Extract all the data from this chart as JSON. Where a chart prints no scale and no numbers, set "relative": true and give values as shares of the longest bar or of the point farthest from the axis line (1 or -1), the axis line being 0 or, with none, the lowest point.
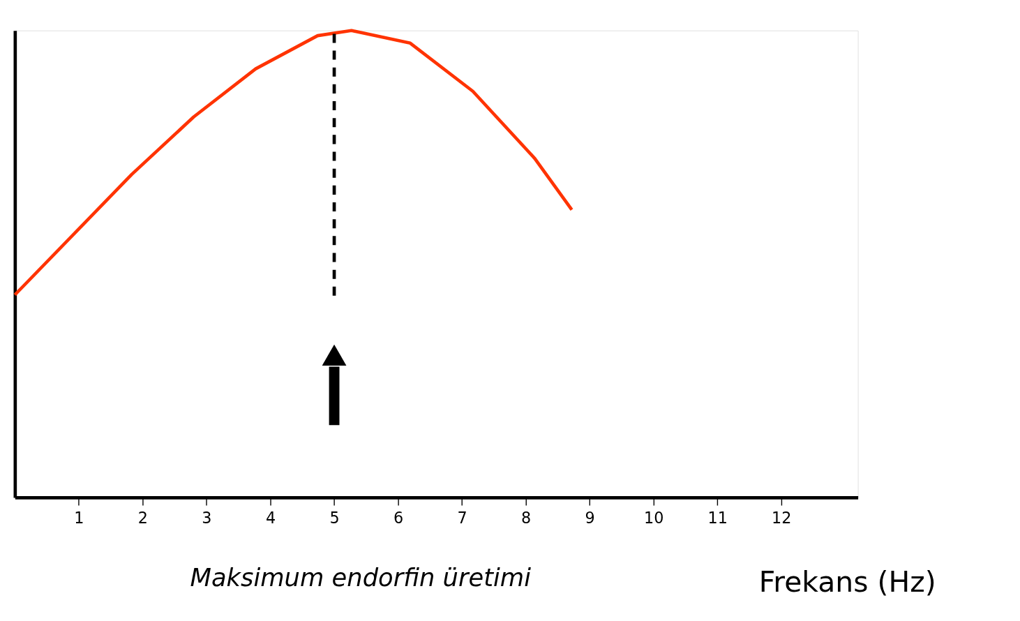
{
  "chart_data": {
    "type": "line",
    "relative": true,
    "xlabel": "Frekans (Hz)",
    "x": [
      0,
      1.83,
      2.8,
      3.77,
      4.74,
      5.27,
      6.19,
      7.17,
      8.14,
      8.72
    ],
    "series": [
      {
        "color": "#ff3300",
        "values": [
          0.434,
          0.692,
          0.815,
          0.918,
          0.989,
          1,
          0.973,
          0.87,
          0.726,
          0.616
        ]
      }
    ],
    "xlim": [
      0,
      13.2
    ],
    "xticks": [
      1,
      2,
      3,
      4,
      5,
      6,
      7,
      8,
      9,
      10,
      11,
      12
    ],
    "ref_lines": [
      {
        "axis": "x",
        "value": 5,
        "color": "#000000",
        "line_style": "dashed"
      }
    ],
    "annotations": [
      "Maksimum endorfin üretimi"
    ],
    "grid": false,
    "marker": "none",
    "line_style": "solid"
  }
}
